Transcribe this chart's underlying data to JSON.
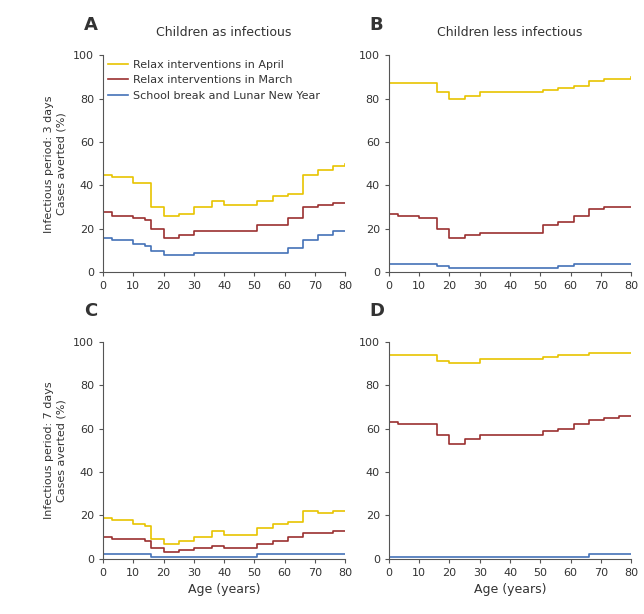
{
  "title_A": "Children as infectious",
  "title_B": "Children less infectious",
  "label_A": "A",
  "label_B": "B",
  "label_C": "C",
  "label_D": "D",
  "ylabel_top": "Infectious period: 3 days",
  "ylabel_bottom": "Infectious period: 7 days",
  "ylabel2": "Cases averted (%)",
  "xlabel": "Age (years)",
  "legend_april": "Relax interventions in April",
  "legend_march": "Relax interventions in March",
  "legend_school": "School break and Lunar New Year",
  "color_april": "#E8C400",
  "color_march": "#9B3030",
  "color_school": "#4472B8",
  "ylim": [
    0,
    100
  ],
  "xlim": [
    0,
    80
  ],
  "xticks": [
    0,
    10,
    20,
    30,
    40,
    50,
    60,
    70,
    80
  ],
  "yticks": [
    0,
    20,
    40,
    60,
    80,
    100
  ],
  "A_april_x": [
    0,
    1,
    2,
    3,
    4,
    5,
    6,
    7,
    8,
    9,
    10,
    11,
    12,
    13,
    14,
    15,
    16,
    17,
    18,
    19,
    20,
    21,
    22,
    23,
    24,
    25,
    26,
    27,
    28,
    29,
    30,
    31,
    32,
    33,
    34,
    35,
    36,
    37,
    38,
    39,
    40,
    41,
    42,
    43,
    44,
    45,
    46,
    47,
    48,
    49,
    50,
    51,
    52,
    53,
    54,
    55,
    56,
    57,
    58,
    59,
    60,
    61,
    62,
    63,
    64,
    65,
    66,
    67,
    68,
    69,
    70,
    71,
    72,
    73,
    74,
    75,
    76,
    77,
    78,
    79,
    80
  ],
  "A_april_y": [
    45,
    45,
    45,
    44,
    44,
    44,
    44,
    44,
    44,
    44,
    41,
    41,
    41,
    41,
    41,
    41,
    30,
    30,
    30,
    30,
    26,
    26,
    26,
    26,
    26,
    27,
    27,
    27,
    27,
    27,
    30,
    30,
    30,
    30,
    30,
    30,
    33,
    33,
    33,
    33,
    31,
    31,
    31,
    31,
    31,
    31,
    31,
    31,
    31,
    31,
    31,
    33,
    33,
    33,
    33,
    33,
    35,
    35,
    35,
    35,
    35,
    36,
    36,
    36,
    36,
    36,
    45,
    45,
    45,
    45,
    45,
    47,
    47,
    47,
    47,
    47,
    49,
    49,
    49,
    49,
    50
  ],
  "A_march_y": [
    28,
    28,
    28,
    26,
    26,
    26,
    26,
    26,
    26,
    26,
    25,
    25,
    25,
    25,
    24,
    24,
    20,
    20,
    20,
    20,
    16,
    16,
    16,
    16,
    16,
    17,
    17,
    17,
    17,
    17,
    19,
    19,
    19,
    19,
    19,
    19,
    19,
    19,
    19,
    19,
    19,
    19,
    19,
    19,
    19,
    19,
    19,
    19,
    19,
    19,
    19,
    22,
    22,
    22,
    22,
    22,
    22,
    22,
    22,
    22,
    22,
    25,
    25,
    25,
    25,
    25,
    30,
    30,
    30,
    30,
    30,
    31,
    31,
    31,
    31,
    31,
    32,
    32,
    32,
    32,
    32
  ],
  "A_school_y": [
    16,
    16,
    16,
    15,
    15,
    15,
    15,
    15,
    15,
    15,
    13,
    13,
    13,
    13,
    12,
    12,
    10,
    10,
    10,
    10,
    8,
    8,
    8,
    8,
    8,
    8,
    8,
    8,
    8,
    8,
    9,
    9,
    9,
    9,
    9,
    9,
    9,
    9,
    9,
    9,
    9,
    9,
    9,
    9,
    9,
    9,
    9,
    9,
    9,
    9,
    9,
    9,
    9,
    9,
    9,
    9,
    9,
    9,
    9,
    9,
    9,
    11,
    11,
    11,
    11,
    11,
    15,
    15,
    15,
    15,
    15,
    17,
    17,
    17,
    17,
    17,
    19,
    19,
    19,
    19,
    19
  ],
  "B_april_y": [
    87,
    87,
    87,
    87,
    87,
    87,
    87,
    87,
    87,
    87,
    87,
    87,
    87,
    87,
    87,
    87,
    83,
    83,
    83,
    83,
    80,
    80,
    80,
    80,
    80,
    81,
    81,
    81,
    81,
    81,
    83,
    83,
    83,
    83,
    83,
    83,
    83,
    83,
    83,
    83,
    83,
    83,
    83,
    83,
    83,
    83,
    83,
    83,
    83,
    83,
    83,
    84,
    84,
    84,
    84,
    84,
    85,
    85,
    85,
    85,
    85,
    86,
    86,
    86,
    86,
    86,
    88,
    88,
    88,
    88,
    88,
    89,
    89,
    89,
    89,
    89,
    89,
    89,
    89,
    89,
    90
  ],
  "B_march_y": [
    27,
    27,
    27,
    26,
    26,
    26,
    26,
    26,
    26,
    26,
    25,
    25,
    25,
    25,
    25,
    25,
    20,
    20,
    20,
    20,
    16,
    16,
    16,
    16,
    16,
    17,
    17,
    17,
    17,
    17,
    18,
    18,
    18,
    18,
    18,
    18,
    18,
    18,
    18,
    18,
    18,
    18,
    18,
    18,
    18,
    18,
    18,
    18,
    18,
    18,
    18,
    22,
    22,
    22,
    22,
    22,
    23,
    23,
    23,
    23,
    23,
    26,
    26,
    26,
    26,
    26,
    29,
    29,
    29,
    29,
    29,
    30,
    30,
    30,
    30,
    30,
    30,
    30,
    30,
    30,
    30
  ],
  "B_school_y": [
    4,
    4,
    4,
    4,
    4,
    4,
    4,
    4,
    4,
    4,
    4,
    4,
    4,
    4,
    4,
    4,
    3,
    3,
    3,
    3,
    2,
    2,
    2,
    2,
    2,
    2,
    2,
    2,
    2,
    2,
    2,
    2,
    2,
    2,
    2,
    2,
    2,
    2,
    2,
    2,
    2,
    2,
    2,
    2,
    2,
    2,
    2,
    2,
    2,
    2,
    2,
    2,
    2,
    2,
    2,
    2,
    3,
    3,
    3,
    3,
    3,
    4,
    4,
    4,
    4,
    4,
    4,
    4,
    4,
    4,
    4,
    4,
    4,
    4,
    4,
    4,
    4,
    4,
    4,
    4,
    4
  ],
  "C_april_y": [
    19,
    19,
    19,
    18,
    18,
    18,
    18,
    18,
    18,
    18,
    16,
    16,
    16,
    16,
    15,
    15,
    9,
    9,
    9,
    9,
    7,
    7,
    7,
    7,
    7,
    8,
    8,
    8,
    8,
    8,
    10,
    10,
    10,
    10,
    10,
    10,
    13,
    13,
    13,
    13,
    11,
    11,
    11,
    11,
    11,
    11,
    11,
    11,
    11,
    11,
    11,
    14,
    14,
    14,
    14,
    14,
    16,
    16,
    16,
    16,
    16,
    17,
    17,
    17,
    17,
    17,
    22,
    22,
    22,
    22,
    22,
    21,
    21,
    21,
    21,
    21,
    22,
    22,
    22,
    22,
    22
  ],
  "C_march_y": [
    10,
    10,
    10,
    9,
    9,
    9,
    9,
    9,
    9,
    9,
    9,
    9,
    9,
    9,
    8,
    8,
    5,
    5,
    5,
    5,
    3,
    3,
    3,
    3,
    3,
    4,
    4,
    4,
    4,
    4,
    5,
    5,
    5,
    5,
    5,
    5,
    6,
    6,
    6,
    6,
    5,
    5,
    5,
    5,
    5,
    5,
    5,
    5,
    5,
    5,
    5,
    7,
    7,
    7,
    7,
    7,
    8,
    8,
    8,
    8,
    8,
    10,
    10,
    10,
    10,
    10,
    12,
    12,
    12,
    12,
    12,
    12,
    12,
    12,
    12,
    12,
    13,
    13,
    13,
    13,
    13
  ],
  "C_school_y": [
    2,
    2,
    2,
    2,
    2,
    2,
    2,
    2,
    2,
    2,
    2,
    2,
    2,
    2,
    2,
    2,
    1,
    1,
    1,
    1,
    1,
    1,
    1,
    1,
    1,
    1,
    1,
    1,
    1,
    1,
    1,
    1,
    1,
    1,
    1,
    1,
    1,
    1,
    1,
    1,
    1,
    1,
    1,
    1,
    1,
    1,
    1,
    1,
    1,
    1,
    1,
    2,
    2,
    2,
    2,
    2,
    2,
    2,
    2,
    2,
    2,
    2,
    2,
    2,
    2,
    2,
    2,
    2,
    2,
    2,
    2,
    2,
    2,
    2,
    2,
    2,
    2,
    2,
    2,
    2,
    2
  ],
  "D_april_y": [
    94,
    94,
    94,
    94,
    94,
    94,
    94,
    94,
    94,
    94,
    94,
    94,
    94,
    94,
    94,
    94,
    91,
    91,
    91,
    91,
    90,
    90,
    90,
    90,
    90,
    90,
    90,
    90,
    90,
    90,
    92,
    92,
    92,
    92,
    92,
    92,
    92,
    92,
    92,
    92,
    92,
    92,
    92,
    92,
    92,
    92,
    92,
    92,
    92,
    92,
    92,
    93,
    93,
    93,
    93,
    93,
    94,
    94,
    94,
    94,
    94,
    94,
    94,
    94,
    94,
    94,
    95,
    95,
    95,
    95,
    95,
    95,
    95,
    95,
    95,
    95,
    95,
    95,
    95,
    95,
    95
  ],
  "D_march_y": [
    63,
    63,
    63,
    62,
    62,
    62,
    62,
    62,
    62,
    62,
    62,
    62,
    62,
    62,
    62,
    62,
    57,
    57,
    57,
    57,
    53,
    53,
    53,
    53,
    53,
    55,
    55,
    55,
    55,
    55,
    57,
    57,
    57,
    57,
    57,
    57,
    57,
    57,
    57,
    57,
    57,
    57,
    57,
    57,
    57,
    57,
    57,
    57,
    57,
    57,
    57,
    59,
    59,
    59,
    59,
    59,
    60,
    60,
    60,
    60,
    60,
    62,
    62,
    62,
    62,
    62,
    64,
    64,
    64,
    64,
    64,
    65,
    65,
    65,
    65,
    65,
    66,
    66,
    66,
    66,
    66
  ],
  "D_school_y": [
    1,
    1,
    1,
    1,
    1,
    1,
    1,
    1,
    1,
    1,
    1,
    1,
    1,
    1,
    1,
    1,
    1,
    1,
    1,
    1,
    1,
    1,
    1,
    1,
    1,
    1,
    1,
    1,
    1,
    1,
    1,
    1,
    1,
    1,
    1,
    1,
    1,
    1,
    1,
    1,
    1,
    1,
    1,
    1,
    1,
    1,
    1,
    1,
    1,
    1,
    1,
    1,
    1,
    1,
    1,
    1,
    1,
    1,
    1,
    1,
    1,
    1,
    1,
    1,
    1,
    1,
    2,
    2,
    2,
    2,
    2,
    2,
    2,
    2,
    2,
    2,
    2,
    2,
    2,
    2,
    2
  ]
}
